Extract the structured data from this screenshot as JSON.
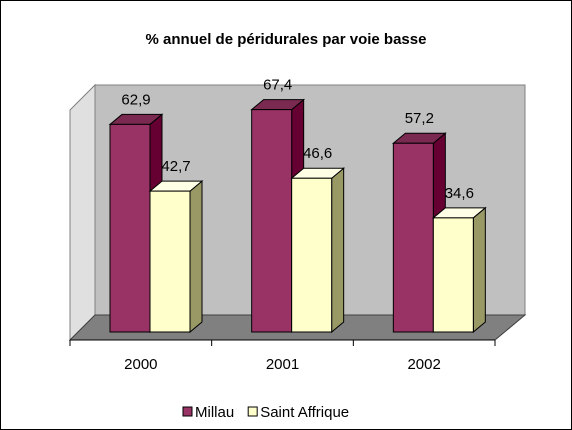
{
  "chart_data": {
    "type": "bar3d",
    "title": "% annuel de péridurales par voie basse",
    "categories": [
      "2000",
      "2001",
      "2002"
    ],
    "series": [
      {
        "name": "Millau",
        "color": "#993366",
        "values": [
          62.9,
          67.4,
          57.2
        ],
        "value_labels": [
          "62,9",
          "67,4",
          "57,2"
        ]
      },
      {
        "name": "Saint Affrique",
        "color": "#ffffcc",
        "values": [
          42.7,
          46.6,
          34.6
        ],
        "value_labels": [
          "42,7",
          "46,6",
          "34,6"
        ]
      }
    ],
    "legend": "bottom"
  }
}
